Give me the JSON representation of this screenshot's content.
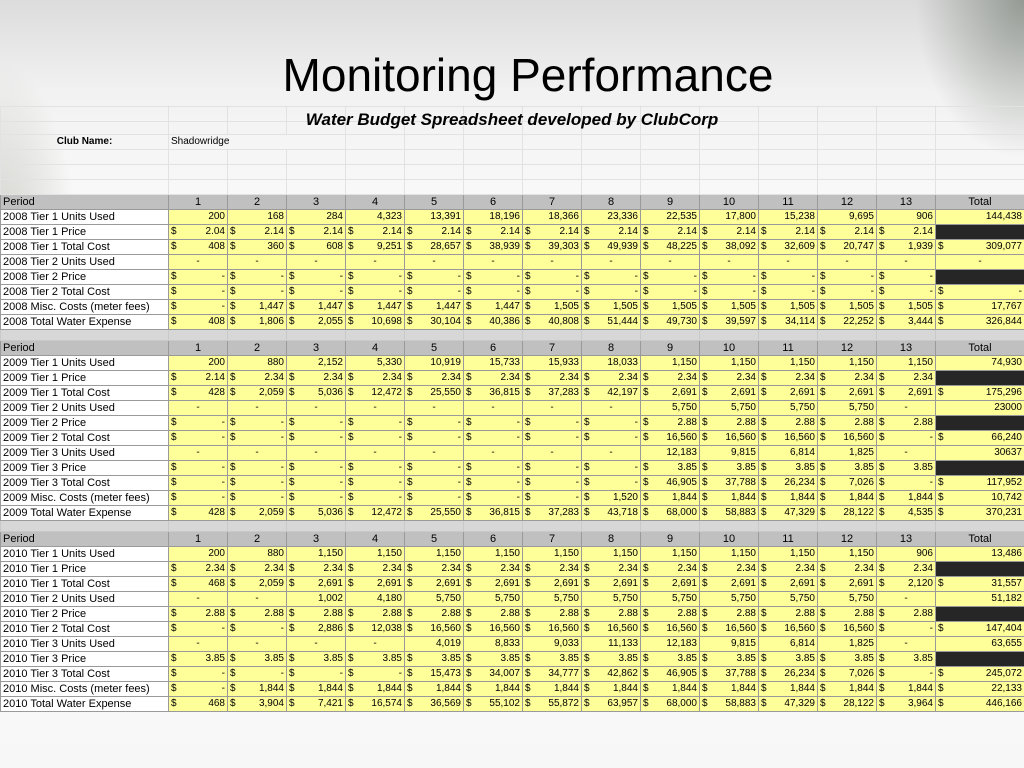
{
  "title": "Monitoring Performance",
  "subtitle": "Water Budget Spreadsheet developed by ClubCorp",
  "club": {
    "label": "Club Name:",
    "value": "Shadowridge"
  },
  "sections": [
    {
      "header": [
        "Period",
        "1",
        "2",
        "3",
        "4",
        "5",
        "6",
        "7",
        "8",
        "9",
        "10",
        "11",
        "12",
        "13",
        "Total"
      ],
      "rows": [
        {
          "label": "2008 Tier 1 Units Used",
          "t": "n",
          "cells": [
            "200",
            "168",
            "284",
            "4,323",
            "13,391",
            "18,196",
            "18,366",
            "23,336",
            "22,535",
            "17,800",
            "15,238",
            "9,695",
            "906"
          ],
          "total": "144,438"
        },
        {
          "label": "2008 Tier 1 Price",
          "t": "p",
          "cells": [
            "2.04",
            "2.14",
            "2.14",
            "2.14",
            "2.14",
            "2.14",
            "2.14",
            "2.14",
            "2.14",
            "2.14",
            "2.14",
            "2.14",
            "2.14"
          ],
          "total": null
        },
        {
          "label": "2008 Tier 1 Total Cost",
          "t": "c",
          "cells": [
            "408",
            "360",
            "608",
            "9,251",
            "28,657",
            "38,939",
            "39,303",
            "49,939",
            "48,225",
            "38,092",
            "32,609",
            "20,747",
            "1,939"
          ],
          "total": "309,077"
        },
        {
          "label": "2008 Tier 2 Units Used",
          "t": "n",
          "cells": [
            "-",
            "-",
            "-",
            "-",
            "-",
            "-",
            "-",
            "-",
            "-",
            "-",
            "-",
            "-",
            "-"
          ],
          "total": "-"
        },
        {
          "label": "2008 Tier 2 Price",
          "t": "p",
          "cells": [
            "-",
            "-",
            "-",
            "-",
            "-",
            "-",
            "-",
            "-",
            "-",
            "-",
            "-",
            "-",
            "-"
          ],
          "total": null
        },
        {
          "label": "2008 Tier 2 Total Cost",
          "t": "c",
          "cells": [
            "-",
            "-",
            "-",
            "-",
            "-",
            "-",
            "-",
            "-",
            "-",
            "-",
            "-",
            "-",
            "-"
          ],
          "total": "-"
        },
        {
          "label": "2008 Misc. Costs (meter fees)",
          "t": "c",
          "cells": [
            "-",
            "1,447",
            "1,447",
            "1,447",
            "1,447",
            "1,447",
            "1,505",
            "1,505",
            "1,505",
            "1,505",
            "1,505",
            "1,505",
            "1,505"
          ],
          "total": "17,767"
        },
        {
          "label": "2008 Total Water Expense",
          "t": "c",
          "cells": [
            "408",
            "1,806",
            "2,055",
            "10,698",
            "30,104",
            "40,386",
            "40,808",
            "51,444",
            "49,730",
            "39,597",
            "34,114",
            "22,252",
            "3,444"
          ],
          "total": "326,844"
        }
      ]
    },
    {
      "header": [
        "Period",
        "1",
        "2",
        "3",
        "4",
        "5",
        "6",
        "7",
        "8",
        "9",
        "10",
        "11",
        "12",
        "13",
        "Total"
      ],
      "rows": [
        {
          "label": "2009 Tier 1 Units Used",
          "t": "n",
          "cells": [
            "200",
            "880",
            "2,152",
            "5,330",
            "10,919",
            "15,733",
            "15,933",
            "18,033",
            "1,150",
            "1,150",
            "1,150",
            "1,150",
            "1,150"
          ],
          "total": "74,930"
        },
        {
          "label": "2009 Tier 1 Price",
          "t": "p",
          "cells": [
            "2.14",
            "2.34",
            "2.34",
            "2.34",
            "2.34",
            "2.34",
            "2.34",
            "2.34",
            "2.34",
            "2.34",
            "2.34",
            "2.34",
            "2.34"
          ],
          "total": null
        },
        {
          "label": "2009 Tier 1 Total Cost",
          "t": "c",
          "cells": [
            "428",
            "2,059",
            "5,036",
            "12,472",
            "25,550",
            "36,815",
            "37,283",
            "42,197",
            "2,691",
            "2,691",
            "2,691",
            "2,691",
            "2,691"
          ],
          "total": "175,296"
        },
        {
          "label": "2009 Tier 2 Units Used",
          "t": "n",
          "cells": [
            "-",
            "-",
            "-",
            "-",
            "-",
            "-",
            "-",
            "-",
            "5,750",
            "5,750",
            "5,750",
            "5,750",
            "-"
          ],
          "total": "23000"
        },
        {
          "label": "2009 Tier 2 Price",
          "t": "p",
          "cells": [
            "-",
            "-",
            "-",
            "-",
            "-",
            "-",
            "-",
            "-",
            "2.88",
            "2.88",
            "2.88",
            "2.88",
            "2.88"
          ],
          "total": null
        },
        {
          "label": "2009 Tier 2 Total Cost",
          "t": "c",
          "cells": [
            "-",
            "-",
            "-",
            "-",
            "-",
            "-",
            "-",
            "-",
            "16,560",
            "16,560",
            "16,560",
            "16,560",
            "-"
          ],
          "total": "66,240"
        },
        {
          "label": "2009 Tier 3 Units Used",
          "t": "n",
          "cells": [
            "-",
            "-",
            "-",
            "-",
            "-",
            "-",
            "-",
            "-",
            "12,183",
            "9,815",
            "6,814",
            "1,825",
            "-"
          ],
          "total": "30637"
        },
        {
          "label": "2009 Tier 3 Price",
          "t": "p",
          "cells": [
            "-",
            "-",
            "-",
            "-",
            "-",
            "-",
            "-",
            "-",
            "3.85",
            "3.85",
            "3.85",
            "3.85",
            "3.85"
          ],
          "total": null
        },
        {
          "label": "2009 Tier 3 Total Cost",
          "t": "c",
          "cells": [
            "-",
            "-",
            "-",
            "-",
            "-",
            "-",
            "-",
            "-",
            "46,905",
            "37,788",
            "26,234",
            "7,026",
            "-"
          ],
          "total": "117,952"
        },
        {
          "label": "2009 Misc. Costs (meter fees)",
          "t": "c",
          "cells": [
            "-",
            "-",
            "-",
            "-",
            "-",
            "-",
            "-",
            "1,520",
            "1,844",
            "1,844",
            "1,844",
            "1,844",
            "1,844"
          ],
          "total": "10,742"
        },
        {
          "label": "2009 Total Water Expense",
          "t": "c",
          "cells": [
            "428",
            "2,059",
            "5,036",
            "12,472",
            "25,550",
            "36,815",
            "37,283",
            "43,718",
            "68,000",
            "58,883",
            "47,329",
            "28,122",
            "4,535"
          ],
          "total": "370,231"
        }
      ]
    },
    {
      "header": [
        "Period",
        "1",
        "2",
        "3",
        "4",
        "5",
        "6",
        "7",
        "8",
        "9",
        "10",
        "11",
        "12",
        "13",
        "Total"
      ],
      "rows": [
        {
          "label": "2010 Tier 1 Units Used",
          "t": "n",
          "cells": [
            "200",
            "880",
            "1,150",
            "1,150",
            "1,150",
            "1,150",
            "1,150",
            "1,150",
            "1,150",
            "1,150",
            "1,150",
            "1,150",
            "906"
          ],
          "total": "13,486"
        },
        {
          "label": "2010 Tier 1 Price",
          "t": "p",
          "cells": [
            "2.34",
            "2.34",
            "2.34",
            "2.34",
            "2.34",
            "2.34",
            "2.34",
            "2.34",
            "2.34",
            "2.34",
            "2.34",
            "2.34",
            "2.34"
          ],
          "total": null
        },
        {
          "label": "2010 Tier 1 Total Cost",
          "t": "c",
          "cells": [
            "468",
            "2,059",
            "2,691",
            "2,691",
            "2,691",
            "2,691",
            "2,691",
            "2,691",
            "2,691",
            "2,691",
            "2,691",
            "2,691",
            "2,120"
          ],
          "total": "31,557"
        },
        {
          "label": "2010 Tier 2 Units Used",
          "t": "n",
          "cells": [
            "-",
            "-",
            "1,002",
            "4,180",
            "5,750",
            "5,750",
            "5,750",
            "5,750",
            "5,750",
            "5,750",
            "5,750",
            "5,750",
            "-"
          ],
          "total": "51,182"
        },
        {
          "label": "2010 Tier 2 Price",
          "t": "p",
          "cells": [
            "2.88",
            "2.88",
            "2.88",
            "2.88",
            "2.88",
            "2.88",
            "2.88",
            "2.88",
            "2.88",
            "2.88",
            "2.88",
            "2.88",
            "2.88"
          ],
          "total": null
        },
        {
          "label": "2010 Tier 2 Total Cost",
          "t": "c",
          "cells": [
            "-",
            "-",
            "2,886",
            "12,038",
            "16,560",
            "16,560",
            "16,560",
            "16,560",
            "16,560",
            "16,560",
            "16,560",
            "16,560",
            "-"
          ],
          "total": "147,404"
        },
        {
          "label": "2010 Tier 3 Units Used",
          "t": "n",
          "cells": [
            "-",
            "-",
            "-",
            "-",
            "4,019",
            "8,833",
            "9,033",
            "11,133",
            "12,183",
            "9,815",
            "6,814",
            "1,825",
            "-"
          ],
          "total": "63,655"
        },
        {
          "label": "2010 Tier 3 Price",
          "t": "p",
          "cells": [
            "3.85",
            "3.85",
            "3.85",
            "3.85",
            "3.85",
            "3.85",
            "3.85",
            "3.85",
            "3.85",
            "3.85",
            "3.85",
            "3.85",
            "3.85"
          ],
          "total": null
        },
        {
          "label": "2010 Tier 3 Total Cost",
          "t": "c",
          "cells": [
            "-",
            "-",
            "-",
            "-",
            "15,473",
            "34,007",
            "34,777",
            "42,862",
            "46,905",
            "37,788",
            "26,234",
            "7,026",
            "-"
          ],
          "total": "245,072"
        },
        {
          "label": "2010 Misc. Costs (meter fees)",
          "t": "c",
          "cells": [
            "-",
            "1,844",
            "1,844",
            "1,844",
            "1,844",
            "1,844",
            "1,844",
            "1,844",
            "1,844",
            "1,844",
            "1,844",
            "1,844",
            "1,844"
          ],
          "total": "22,133"
        },
        {
          "label": "2010 Total Water Expense",
          "t": "c",
          "cells": [
            "468",
            "3,904",
            "7,421",
            "16,574",
            "36,569",
            "55,102",
            "55,872",
            "63,957",
            "68,000",
            "58,883",
            "47,329",
            "28,122",
            "3,964"
          ],
          "total": "446,166"
        }
      ]
    }
  ]
}
